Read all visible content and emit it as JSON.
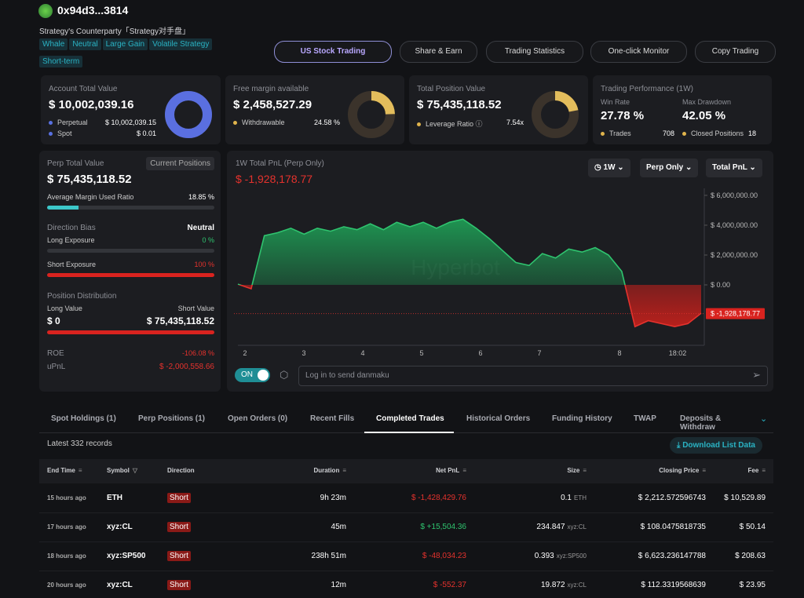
{
  "header": {
    "address": "0x94d3...3814",
    "subtitle": "Strategy's Counterparty「Strategy对手盘」",
    "tags": [
      "Whale",
      "Neutral",
      "Large Gain",
      "Volatile Strategy",
      "Short-term"
    ],
    "buttons": [
      "US Stock Trading",
      "Share & Earn",
      "Trading Statistics",
      "One-click Monitor",
      "Copy Trading"
    ]
  },
  "cards": {
    "account": {
      "title": "Account Total Value",
      "value": "$ 10,002,039.16",
      "perp_label": "Perpetual",
      "perp": "$ 10,002,039.15",
      "spot_label": "Spot",
      "spot": "$ 0.01"
    },
    "margin": {
      "title": "Free margin available",
      "value": "$ 2,458,527.29",
      "label": "Withdrawable",
      "pct": "24.58 %"
    },
    "position": {
      "title": "Total Position Value",
      "value": "$ 75,435,118.52",
      "label": "Leverage Ratio",
      "ratio": "7.54x"
    },
    "performance": {
      "title": "Trading Performance (1W)",
      "win_label": "Win Rate",
      "win": "27.78 %",
      "dd_label": "Max Drawdown",
      "dd": "42.05 %",
      "trades_label": "Trades",
      "trades": "708",
      "closed_label": "Closed Positions",
      "closed": "18"
    }
  },
  "perp": {
    "title": "Perp Total Value",
    "badge": "Current Positions",
    "value": "$ 75,435,118.52",
    "margin_label": "Average Margin Used Ratio",
    "margin": "18.85 %",
    "bias_label": "Direction Bias",
    "bias": "Neutral",
    "long_label": "Long Exposure",
    "long": "0 %",
    "short_label": "Short Exposure",
    "short": "100 %",
    "dist_label": "Position Distribution",
    "long_value_label": "Long Value",
    "short_value_label": "Short Value",
    "long_value": "$ 0",
    "short_value": "$ 75,435,118.52",
    "roe_label": "ROE",
    "roe": "-106.08 %",
    "upnl_label": "uPnL",
    "upnl": "$ -2,000,558.66"
  },
  "pnl_chart": {
    "type": "area",
    "title": "1W Total PnL (Perp Only)",
    "watermark": "Hyperbot",
    "controls": [
      "1W",
      "Perp Only",
      "Total PnL"
    ],
    "current": {
      "value": -1928178.77,
      "label": "$ -1,928,178.77"
    },
    "values": [
      50000,
      -260000,
      3300000,
      3500000,
      3800000,
      3400000,
      3800000,
      3600000,
      3900000,
      3700000,
      4100000,
      3700000,
      4200000,
      3900000,
      4200000,
      3800000,
      4200000,
      4400000,
      3800000,
      3100000,
      2300000,
      1500000,
      1300000,
      2100000,
      1800000,
      2400000,
      2200000,
      2500000,
      2000000,
      900000,
      -2800000,
      -2400000,
      -2600000,
      -2800000,
      -2600000,
      -1900000
    ],
    "ylim": [
      -4050000,
      6470000
    ],
    "yticks": [
      {
        "value": 6000000,
        "label": "$ 6,000,000.00"
      },
      {
        "value": 4000000,
        "label": "$ 4,000,000.00"
      },
      {
        "value": 2000000,
        "label": "$ 2,000,000.00"
      },
      {
        "value": 0,
        "label": "$ 0.00"
      }
    ],
    "xticks": [
      "2",
      "3",
      "4",
      "5",
      "6",
      "7",
      "8",
      "18:02"
    ]
  },
  "danmaku": {
    "toggle": "ON",
    "placeholder": "Log in to send danmaku"
  },
  "tabs": [
    "Spot Holdings (1)",
    "Perp Positions (1)",
    "Open Orders (0)",
    "Recent Fills",
    "Completed Trades",
    "Historical Orders",
    "Funding History",
    "TWAP",
    "Deposits & Withdraw"
  ],
  "records": "Latest 332 records",
  "download": "Download List Data",
  "table": {
    "columns": [
      "End Time",
      "Symbol",
      "Direction",
      "Duration",
      "Net PnL",
      "Size",
      "Closing Price",
      "Fee"
    ],
    "rows": [
      [
        "15 hours ago",
        "ETH",
        "Short",
        "9h 23m",
        "$ -1,428,429.76",
        {
          "amount": "0.1",
          "unit": "ETH"
        },
        "$ 2,212.572596743",
        "$ 10,529.89"
      ],
      [
        "17 hours ago",
        "xyz:CL",
        "Short",
        "45m",
        "$ +15,504.36",
        {
          "amount": "234.847",
          "unit": "xyz:CL"
        },
        "$ 108.0475818735",
        "$ 50.14"
      ],
      [
        "18 hours ago",
        "xyz:SP500",
        "Short",
        "238h 51m",
        "$ -48,034.23",
        {
          "amount": "0.393",
          "unit": "xyz:SP500"
        },
        "$ 6,623.236147788",
        "$ 208.63"
      ],
      [
        "20 hours ago",
        "xyz:CL",
        "Short",
        "12m",
        "$ -552.37",
        {
          "amount": "19.872",
          "unit": "xyz:CL"
        },
        "$ 112.3319568639",
        "$ 23.95"
      ]
    ]
  }
}
